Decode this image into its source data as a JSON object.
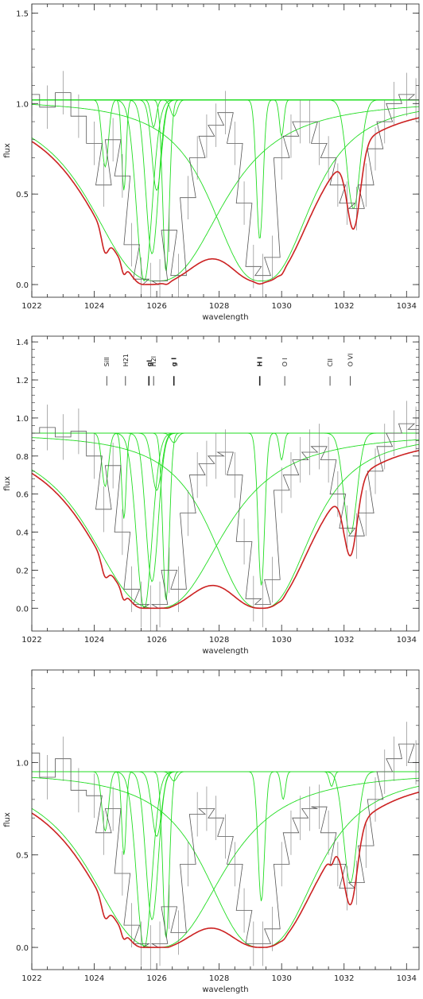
{
  "chart_data": [
    {
      "type": "line",
      "title": "",
      "xlabel": "wavelength",
      "ylabel": "flux",
      "xlim": [
        1022,
        1034.4
      ],
      "ylim": [
        -0.07,
        1.55
      ],
      "xticks": [
        1022,
        1024,
        1026,
        1028,
        1030,
        1032,
        1034
      ],
      "yticks": [
        0.0,
        0.5,
        1.0,
        1.5
      ],
      "ytick_labels": [
        "0.0",
        "0.5",
        "1.0",
        "1.5"
      ],
      "continuum": 1.02,
      "grid": false,
      "legend": "none",
      "line_ids": [],
      "series": [
        {
          "role": "data",
          "color": "#555555",
          "x": [
            1022.0,
            1022.5,
            1023.0,
            1023.5,
            1024.0,
            1024.3,
            1024.6,
            1024.9,
            1025.2,
            1025.5,
            1025.8,
            1026.1,
            1026.4,
            1026.7,
            1027.0,
            1027.3,
            1027.6,
            1027.9,
            1028.2,
            1028.5,
            1028.8,
            1029.1,
            1029.4,
            1029.7,
            1030.0,
            1030.3,
            1030.6,
            1030.9,
            1031.2,
            1031.5,
            1031.8,
            1032.1,
            1032.4,
            1032.7,
            1033.0,
            1033.3,
            1033.6,
            1034.0,
            1034.3
          ],
          "y": [
            1.05,
            0.98,
            1.06,
            0.93,
            0.78,
            0.55,
            0.8,
            0.6,
            0.22,
            0.03,
            0.0,
            0.02,
            0.3,
            0.05,
            0.48,
            0.7,
            0.82,
            0.88,
            0.95,
            0.78,
            0.45,
            0.1,
            0.05,
            0.15,
            0.7,
            0.82,
            0.9,
            0.9,
            0.78,
            0.7,
            0.55,
            0.45,
            0.42,
            0.55,
            0.75,
            0.9,
            1.0,
            1.05,
            1.02
          ]
        },
        {
          "role": "model",
          "color": "#cc2222",
          "x": [
            1022.0,
            1023.0,
            1023.5,
            1023.8,
            1024.0,
            1024.2,
            1024.4,
            1024.6,
            1024.75,
            1024.9,
            1025.1,
            1025.3,
            1025.5,
            1025.8,
            1026.1,
            1026.3,
            1026.4,
            1026.5,
            1026.7,
            1026.9,
            1027.2,
            1027.5,
            1027.7,
            1028.0,
            1028.3,
            1028.6,
            1028.9,
            1029.2,
            1029.5,
            1029.8,
            1030.0,
            1030.3,
            1030.6,
            1030.9,
            1031.2,
            1031.5,
            1031.8,
            1032.0,
            1032.3,
            1032.6,
            1032.9,
            1033.2,
            1033.6,
            1034.0,
            1034.4
          ],
          "y": [
            1.0,
            0.99,
            0.97,
            0.93,
            0.85,
            0.65,
            0.57,
            0.72,
            0.78,
            0.6,
            0.3,
            0.05,
            0.0,
            0.0,
            0.0,
            0.1,
            0.17,
            0.0,
            0.1,
            0.4,
            0.68,
            0.82,
            0.87,
            0.88,
            0.82,
            0.6,
            0.2,
            0.0,
            0.0,
            0.15,
            0.5,
            0.8,
            0.91,
            0.94,
            0.96,
            0.93,
            0.75,
            0.58,
            0.41,
            0.5,
            0.82,
            0.97,
            1.01,
            1.01,
            1.02
          ]
        },
        {
          "role": "component",
          "color": "#22dd22",
          "center": 1024.35,
          "depth": 0.37,
          "width": 0.15
        },
        {
          "role": "component",
          "color": "#22dd22",
          "center": 1024.95,
          "depth": 0.5,
          "width": 0.1
        },
        {
          "role": "component",
          "color": "#22dd22",
          "center": 1025.6,
          "depth": 1.0,
          "width": 0.35
        },
        {
          "role": "component",
          "color": "#22dd22",
          "center": 1025.85,
          "depth": 0.85,
          "width": 0.28
        },
        {
          "role": "component",
          "color": "#22dd22",
          "center": 1026.0,
          "depth": 0.5,
          "width": 0.22
        },
        {
          "role": "component",
          "color": "#22dd22",
          "center": 1025.9,
          "depth": 0.15,
          "width": 0.12
        },
        {
          "role": "component",
          "color": "#22dd22",
          "center": 1026.3,
          "depth": 0.95,
          "width": 0.15
        },
        {
          "role": "component",
          "color": "#22dd22",
          "center": 1026.55,
          "depth": 0.09,
          "width": 0.15
        },
        {
          "role": "component",
          "color": "#22dd22",
          "center": 1029.3,
          "depth": 0.77,
          "width": 0.15
        },
        {
          "role": "component",
          "color": "#22dd22",
          "center": 1030.0,
          "depth": 0.2,
          "width": 0.1
        },
        {
          "role": "component",
          "color": "#22dd22",
          "center": 1032.3,
          "depth": 0.6,
          "width": 0.3
        },
        {
          "role": "wing",
          "color": "#22dd22",
          "center": 1026.0,
          "depth": 1.0,
          "width": 0.55,
          "tail": 2.4
        },
        {
          "role": "wing",
          "color": "#22dd22",
          "center": 1029.35,
          "depth": 1.0,
          "width": 0.35,
          "tail": 1.8
        }
      ]
    },
    {
      "type": "line",
      "title": "",
      "xlabel": "wavelength",
      "ylabel": "flux",
      "xlim": [
        1022,
        1034.4
      ],
      "ylim": [
        -0.12,
        1.43
      ],
      "xticks": [
        1022,
        1024,
        1026,
        1028,
        1030,
        1032,
        1034
      ],
      "yticks": [
        0.0,
        0.2,
        0.4,
        0.6,
        0.8,
        1.0,
        1.2,
        1.4
      ],
      "ytick_labels": [
        "0.0",
        "0.2",
        "0.4",
        "0.6",
        "0.8",
        "1.0",
        "1.2",
        "1.4"
      ],
      "continuum": 0.92,
      "grid": false,
      "legend": "none",
      "line_ids": [
        {
          "label": "SiII",
          "x": 1024.4,
          "bold": false
        },
        {
          "label": "H21",
          "x": 1025.0,
          "bold": false
        },
        {
          "label": "gl",
          "x": 1025.75,
          "bold": true
        },
        {
          "label": "H2l",
          "x": 1025.9,
          "bold": false
        },
        {
          "label": "g I",
          "x": 1026.55,
          "bold": true
        },
        {
          "label": "H I",
          "x": 1029.3,
          "bold": true
        },
        {
          "label": "O I",
          "x": 1030.1,
          "bold": false
        },
        {
          "label": "CII",
          "x": 1031.55,
          "bold": false
        },
        {
          "label": "O VI",
          "x": 1032.2,
          "bold": false
        }
      ],
      "series": [
        {
          "role": "data",
          "color": "#555555",
          "x": [
            1022.0,
            1022.5,
            1023.0,
            1023.5,
            1024.0,
            1024.3,
            1024.6,
            1024.9,
            1025.2,
            1025.5,
            1025.8,
            1026.1,
            1026.4,
            1026.7,
            1027.0,
            1027.3,
            1027.6,
            1027.9,
            1028.2,
            1028.5,
            1028.8,
            1029.1,
            1029.4,
            1029.7,
            1030.0,
            1030.3,
            1030.6,
            1030.9,
            1031.2,
            1031.5,
            1031.8,
            1032.1,
            1032.4,
            1032.7,
            1033.0,
            1033.3,
            1033.6,
            1034.0,
            1034.3
          ],
          "y": [
            0.92,
            0.95,
            0.9,
            0.93,
            0.8,
            0.52,
            0.75,
            0.4,
            0.1,
            0.02,
            0.0,
            0.02,
            0.2,
            0.1,
            0.5,
            0.7,
            0.76,
            0.8,
            0.82,
            0.7,
            0.35,
            0.05,
            0.02,
            0.15,
            0.62,
            0.7,
            0.78,
            0.82,
            0.85,
            0.78,
            0.6,
            0.42,
            0.38,
            0.5,
            0.72,
            0.85,
            0.92,
            0.97,
            0.94
          ]
        },
        {
          "role": "model",
          "color": "#cc2222",
          "x": [
            1022.0,
            1023.0,
            1023.5,
            1023.8,
            1024.0,
            1024.2,
            1024.4,
            1024.6,
            1024.75,
            1024.9,
            1025.1,
            1025.3,
            1025.5,
            1025.8,
            1026.1,
            1026.3,
            1026.4,
            1026.5,
            1026.7,
            1026.9,
            1027.2,
            1027.5,
            1027.7,
            1028.0,
            1028.3,
            1028.6,
            1028.9,
            1029.2,
            1029.5,
            1029.8,
            1030.0,
            1030.3,
            1030.6,
            1030.9,
            1031.2,
            1031.5,
            1031.8,
            1032.0,
            1032.3,
            1032.6,
            1032.9,
            1033.2,
            1033.6,
            1034.0,
            1034.4
          ],
          "y": [
            0.91,
            0.89,
            0.87,
            0.84,
            0.78,
            0.62,
            0.52,
            0.66,
            0.7,
            0.45,
            0.18,
            0.02,
            0.0,
            0.0,
            0.0,
            0.08,
            0.15,
            0.0,
            0.1,
            0.38,
            0.64,
            0.76,
            0.79,
            0.79,
            0.74,
            0.55,
            0.18,
            0.0,
            0.0,
            0.12,
            0.45,
            0.72,
            0.8,
            0.83,
            0.85,
            0.82,
            0.66,
            0.5,
            0.37,
            0.45,
            0.72,
            0.87,
            0.91,
            0.92,
            0.92
          ]
        },
        {
          "role": "component",
          "color": "#22dd22",
          "center": 1024.35,
          "depth": 0.28,
          "width": 0.15
        },
        {
          "role": "component",
          "color": "#22dd22",
          "center": 1024.95,
          "depth": 0.45,
          "width": 0.1
        },
        {
          "role": "component",
          "color": "#22dd22",
          "center": 1025.6,
          "depth": 0.92,
          "width": 0.35
        },
        {
          "role": "component",
          "color": "#22dd22",
          "center": 1025.85,
          "depth": 0.78,
          "width": 0.28
        },
        {
          "role": "component",
          "color": "#22dd22",
          "center": 1026.0,
          "depth": 0.3,
          "width": 0.22
        },
        {
          "role": "component",
          "color": "#22dd22",
          "center": 1026.3,
          "depth": 0.88,
          "width": 0.15
        },
        {
          "role": "component",
          "color": "#22dd22",
          "center": 1026.55,
          "depth": 0.05,
          "width": 0.15
        },
        {
          "role": "component",
          "color": "#22dd22",
          "center": 1029.35,
          "depth": 0.8,
          "width": 0.15
        },
        {
          "role": "component",
          "color": "#22dd22",
          "center": 1030.0,
          "depth": 0.14,
          "width": 0.1
        },
        {
          "role": "component",
          "color": "#22dd22",
          "center": 1032.2,
          "depth": 0.53,
          "width": 0.3
        },
        {
          "role": "wing",
          "color": "#22dd22",
          "center": 1026.0,
          "depth": 0.92,
          "width": 0.55,
          "tail": 2.4
        },
        {
          "role": "wing",
          "color": "#22dd22",
          "center": 1029.35,
          "depth": 0.92,
          "width": 0.35,
          "tail": 1.8
        }
      ]
    },
    {
      "type": "line",
      "title": "",
      "xlabel": "wavelength",
      "ylabel": "flux",
      "xlim": [
        1022,
        1034.4
      ],
      "ylim": [
        -0.12,
        1.5
      ],
      "xticks": [
        1022,
        1024,
        1026,
        1028,
        1030,
        1032,
        1034
      ],
      "yticks": [
        0.0,
        0.5,
        1.0
      ],
      "ytick_labels": [
        "0.0",
        "0.5",
        "1.0"
      ],
      "continuum": 0.95,
      "grid": false,
      "legend": "none",
      "line_ids": [],
      "series": [
        {
          "role": "data",
          "color": "#555555",
          "x": [
            1022.0,
            1022.5,
            1023.0,
            1023.5,
            1024.0,
            1024.3,
            1024.6,
            1024.9,
            1025.2,
            1025.5,
            1025.8,
            1026.1,
            1026.4,
            1026.7,
            1027.0,
            1027.3,
            1027.6,
            1027.9,
            1028.2,
            1028.5,
            1028.8,
            1029.1,
            1029.4,
            1029.7,
            1030.0,
            1030.3,
            1030.6,
            1030.9,
            1031.2,
            1031.5,
            1031.8,
            1032.1,
            1032.4,
            1032.7,
            1033.0,
            1033.3,
            1033.6,
            1034.0,
            1034.3
          ],
          "y": [
            1.05,
            0.92,
            1.02,
            0.85,
            0.82,
            0.62,
            0.75,
            0.4,
            0.12,
            0.02,
            0.0,
            0.02,
            0.22,
            0.08,
            0.45,
            0.72,
            0.75,
            0.7,
            0.6,
            0.45,
            0.2,
            0.02,
            0.02,
            0.1,
            0.45,
            0.62,
            0.7,
            0.75,
            0.76,
            0.62,
            0.45,
            0.32,
            0.35,
            0.55,
            0.8,
            0.95,
            1.02,
            1.1,
            1.0
          ]
        },
        {
          "role": "model",
          "color": "#cc2222",
          "x": [
            1022.0,
            1023.0,
            1023.5,
            1023.8,
            1024.0,
            1024.2,
            1024.4,
            1024.6,
            1024.75,
            1024.9,
            1025.1,
            1025.3,
            1025.5,
            1025.8,
            1026.1,
            1026.3,
            1026.4,
            1026.5,
            1026.7,
            1026.9,
            1027.2,
            1027.5,
            1027.7,
            1028.0,
            1028.3,
            1028.6,
            1028.9,
            1029.2,
            1029.5,
            1029.8,
            1030.0,
            1030.3,
            1030.6,
            1030.9,
            1031.2,
            1031.5,
            1031.8,
            1032.0,
            1032.3,
            1032.6,
            1032.9,
            1033.2,
            1033.6,
            1034.0,
            1034.4
          ],
          "y": [
            0.93,
            0.91,
            0.88,
            0.84,
            0.76,
            0.58,
            0.45,
            0.68,
            0.72,
            0.5,
            0.18,
            0.02,
            0.0,
            0.0,
            0.0,
            0.1,
            0.17,
            0.0,
            0.12,
            0.4,
            0.66,
            0.73,
            0.73,
            0.7,
            0.58,
            0.35,
            0.08,
            0.0,
            0.0,
            0.05,
            0.28,
            0.55,
            0.68,
            0.73,
            0.77,
            0.76,
            0.62,
            0.48,
            0.36,
            0.45,
            0.72,
            0.86,
            0.91,
            0.93,
            0.94
          ]
        },
        {
          "role": "component",
          "color": "#22dd22",
          "center": 1024.35,
          "depth": 0.32,
          "width": 0.15
        },
        {
          "role": "component",
          "color": "#22dd22",
          "center": 1024.95,
          "depth": 0.45,
          "width": 0.1
        },
        {
          "role": "component",
          "color": "#22dd22",
          "center": 1025.6,
          "depth": 0.95,
          "width": 0.35
        },
        {
          "role": "component",
          "color": "#22dd22",
          "center": 1025.85,
          "depth": 0.8,
          "width": 0.28
        },
        {
          "role": "component",
          "color": "#22dd22",
          "center": 1026.0,
          "depth": 0.35,
          "width": 0.22
        },
        {
          "role": "component",
          "color": "#22dd22",
          "center": 1026.3,
          "depth": 0.9,
          "width": 0.15
        },
        {
          "role": "component",
          "color": "#22dd22",
          "center": 1026.55,
          "depth": 0.05,
          "width": 0.15
        },
        {
          "role": "component",
          "color": "#22dd22",
          "center": 1029.35,
          "depth": 0.7,
          "width": 0.15
        },
        {
          "role": "component",
          "color": "#22dd22",
          "center": 1030.05,
          "depth": 0.15,
          "width": 0.1
        },
        {
          "role": "component",
          "color": "#22dd22",
          "center": 1031.6,
          "depth": 0.08,
          "width": 0.1
        },
        {
          "role": "component",
          "color": "#22dd22",
          "center": 1032.2,
          "depth": 0.6,
          "width": 0.3
        },
        {
          "role": "wing",
          "color": "#22dd22",
          "center": 1026.0,
          "depth": 0.95,
          "width": 0.55,
          "tail": 2.4
        },
        {
          "role": "wing",
          "color": "#22dd22",
          "center": 1029.35,
          "depth": 0.95,
          "width": 0.4,
          "tail": 2.0
        }
      ]
    }
  ]
}
